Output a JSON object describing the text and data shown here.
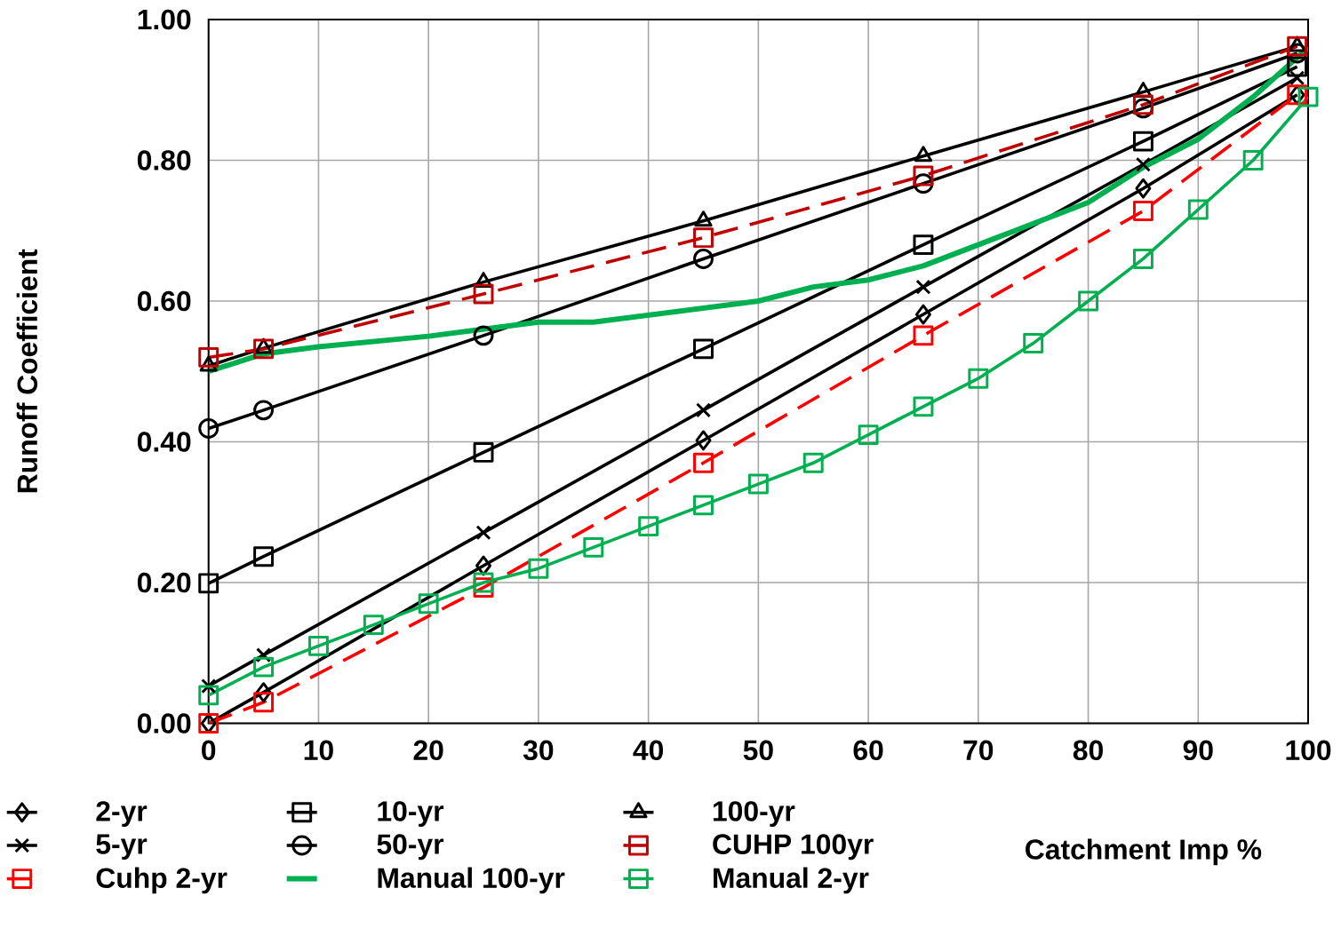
{
  "chart_data": {
    "type": "line",
    "xlabel": "Catchment Imp %",
    "ylabel": "Runoff Coefficient",
    "xlim": [
      0,
      100
    ],
    "ylim": [
      0,
      1
    ],
    "xticks": [
      0,
      10,
      20,
      30,
      40,
      50,
      60,
      70,
      80,
      90,
      100
    ],
    "yticks": [
      {
        "value": 0,
        "label": "0.00"
      },
      {
        "value": 0.2,
        "label": "0.20"
      },
      {
        "value": 0.4,
        "label": "0.40"
      },
      {
        "value": 0.6,
        "label": "0.60"
      },
      {
        "value": 0.8,
        "label": "0.80"
      },
      {
        "value": 1,
        "label": "1.00"
      }
    ],
    "grid": true,
    "legend": "bottom",
    "series": [
      {
        "name": "2-yr",
        "color": "#000000",
        "marker": "diamond",
        "line_style": "solid",
        "x": [
          0,
          5,
          25,
          45,
          65,
          85,
          99
        ],
        "values": [
          0.0,
          0.044,
          0.224,
          0.402,
          0.581,
          0.76,
          0.893
        ]
      },
      {
        "name": "10-yr",
        "color": "#000000",
        "marker": "square",
        "line_style": "solid",
        "x": [
          0,
          5,
          25,
          45,
          65,
          85,
          99
        ],
        "values": [
          0.199,
          0.237,
          0.385,
          0.532,
          0.68,
          0.827,
          0.933
        ]
      },
      {
        "name": "100-yr",
        "color": "#000000",
        "marker": "triangle",
        "line_style": "solid",
        "x": [
          0,
          5,
          25,
          45,
          65,
          85,
          99
        ],
        "values": [
          0.508,
          0.533,
          0.627,
          0.714,
          0.806,
          0.897,
          0.962
        ]
      },
      {
        "name": "5-yr",
        "color": "#000000",
        "marker": "cross",
        "line_style": "solid",
        "x": [
          0,
          5,
          25,
          45,
          65,
          85,
          99
        ],
        "values": [
          0.053,
          0.097,
          0.271,
          0.445,
          0.62,
          0.794,
          0.917
        ]
      },
      {
        "name": "50-yr",
        "color": "#000000",
        "marker": "circle",
        "line_style": "solid",
        "x": [
          0,
          5,
          25,
          45,
          65,
          85,
          99
        ],
        "values": [
          0.419,
          0.445,
          0.551,
          0.66,
          0.767,
          0.874,
          0.952
        ]
      },
      {
        "name": "CUHP 100yr",
        "color": "#c00000",
        "marker": "square",
        "line_style": "dashed",
        "x": [
          0,
          5,
          25,
          45,
          65,
          85,
          99
        ],
        "values": [
          0.52,
          0.532,
          0.61,
          0.69,
          0.778,
          0.879,
          0.962
        ]
      },
      {
        "name": "Cuhp 2-yr",
        "color": "#ff0000",
        "marker": "square",
        "line_style": "dashed",
        "x": [
          0,
          5,
          25,
          45,
          65,
          85,
          99
        ],
        "values": [
          0.0,
          0.03,
          0.193,
          0.37,
          0.551,
          0.728,
          0.893
        ]
      },
      {
        "name": "Manual 100-yr",
        "color": "#00b050",
        "marker": "none",
        "line_style": "solid",
        "x": [
          0,
          5,
          10,
          20,
          25,
          30,
          35,
          40,
          45,
          50,
          55,
          60,
          65,
          70,
          75,
          80,
          85,
          90,
          95,
          100
        ],
        "values": [
          0.5,
          0.525,
          0.535,
          0.55,
          0.56,
          0.57,
          0.57,
          0.58,
          0.59,
          0.6,
          0.62,
          0.63,
          0.65,
          0.68,
          0.71,
          0.74,
          0.79,
          0.83,
          0.89,
          0.96
        ]
      },
      {
        "name": "Manual 2-yr",
        "color": "#00b050",
        "marker": "square",
        "line_style": "solid",
        "x": [
          0,
          5,
          10,
          15,
          20,
          25,
          30,
          35,
          40,
          45,
          50,
          55,
          60,
          65,
          70,
          75,
          80,
          85,
          90,
          95,
          100
        ],
        "values": [
          0.04,
          0.08,
          0.11,
          0.14,
          0.17,
          0.2,
          0.22,
          0.25,
          0.28,
          0.31,
          0.34,
          0.37,
          0.41,
          0.45,
          0.49,
          0.54,
          0.6,
          0.66,
          0.73,
          0.8,
          0.89
        ]
      }
    ]
  }
}
